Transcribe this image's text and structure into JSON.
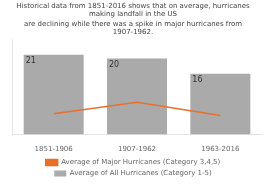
{
  "chart_data": {
    "type": "bar",
    "title": "Historical data from 1851-2016 shows that on average, hurricanes making landfall in the US",
    "subtitle": "are declining while there was a spike in major hurricanes from 1907-1962.",
    "categories": [
      "1851-1906",
      "1907-1962",
      "1963-2016"
    ],
    "series": [
      {
        "name": "Average of All Hurricanes (Category 1-5)",
        "type": "bar",
        "color": "#aaaaaa",
        "values": [
          21,
          20,
          16
        ],
        "data_labels": true
      },
      {
        "name": "Average of Major Hurricanes (Category 3,4,5)",
        "type": "line",
        "color": "#e8702a",
        "values": [
          5.5,
          8.5,
          5.0
        ]
      }
    ],
    "ylim": [
      0,
      25
    ],
    "grid": false,
    "legend": "bottom",
    "tick_labels": "x"
  }
}
